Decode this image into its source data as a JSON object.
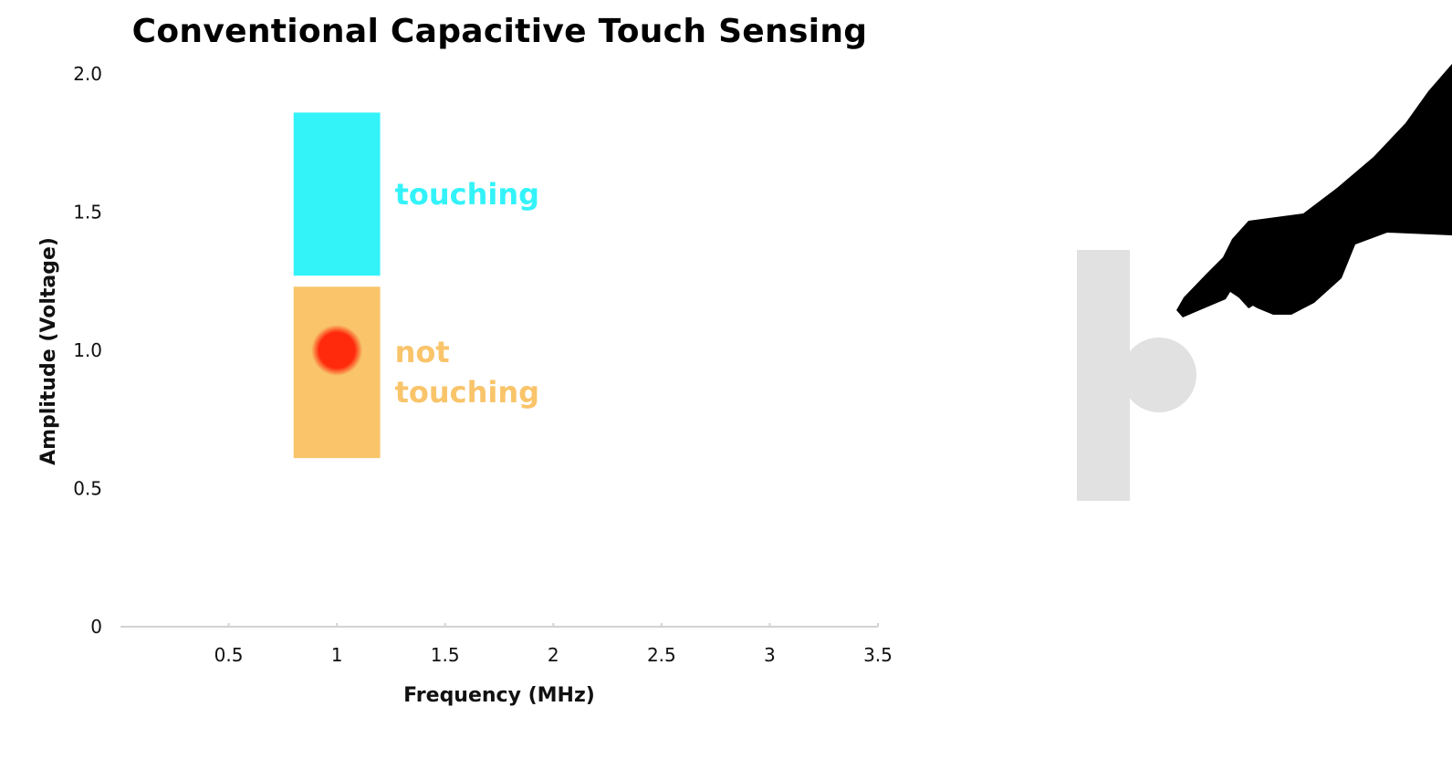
{
  "title": "Conventional Capacitive Touch Sensing",
  "colors": {
    "touching": "#33f3f9",
    "not_touching": "#f9c46a",
    "reading": "#ff2a0c",
    "electrode": "#e1e1e1",
    "hand": "#000000",
    "axis": "#d3d3d3"
  },
  "chart_data": {
    "type": "scatter",
    "title": "Conventional Capacitive Touch Sensing",
    "xlabel": "Frequency (MHz)",
    "ylabel": "Amplitude (Voltage)",
    "xlim": [
      0,
      3.5
    ],
    "ylim": [
      0,
      2.0
    ],
    "x_ticks": [
      {
        "value": 0.5,
        "label": "0.5"
      },
      {
        "value": 1,
        "label": "1"
      },
      {
        "value": 1.5,
        "label": "1.5"
      },
      {
        "value": 2,
        "label": "2"
      },
      {
        "value": 2.5,
        "label": "2.5"
      },
      {
        "value": 3,
        "label": "3"
      },
      {
        "value": 3.5,
        "label": "3.5"
      }
    ],
    "y_ticks": [
      {
        "value": 0,
        "label": "0"
      },
      {
        "value": 0.5,
        "label": "0.5"
      },
      {
        "value": 1.0,
        "label": "1.0"
      },
      {
        "value": 1.5,
        "label": "1.5"
      },
      {
        "value": 2.0,
        "label": "2.0"
      }
    ],
    "regions": [
      {
        "label_lines": [
          "touching"
        ],
        "x0": 0.8,
        "x1": 1.2,
        "y0": 1.27,
        "y1": 1.86,
        "color": "#33f3f9"
      },
      {
        "label_lines": [
          "not",
          "touching"
        ],
        "x0": 0.8,
        "x1": 1.2,
        "y0": 0.61,
        "y1": 1.23,
        "color": "#f9c46a"
      }
    ],
    "points": [
      {
        "x": 1.0,
        "y": 1.0,
        "color": "#ff2a0c"
      }
    ],
    "grid": false
  }
}
